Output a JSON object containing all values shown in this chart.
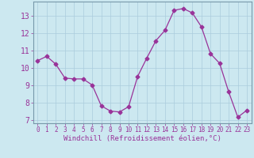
{
  "x": [
    0,
    1,
    2,
    3,
    4,
    5,
    6,
    7,
    8,
    9,
    10,
    11,
    12,
    13,
    14,
    15,
    16,
    17,
    18,
    19,
    20,
    21,
    22,
    23
  ],
  "y": [
    10.4,
    10.65,
    10.2,
    9.4,
    9.35,
    9.35,
    9.0,
    7.8,
    7.5,
    7.45,
    7.75,
    9.5,
    10.55,
    11.55,
    12.15,
    13.3,
    13.4,
    13.15,
    12.35,
    10.8,
    10.25,
    8.6,
    7.15,
    7.55
  ],
  "line_color": "#993399",
  "marker": "D",
  "marker_size": 2.5,
  "xlim": [
    -0.5,
    23.5
  ],
  "ylim": [
    6.8,
    13.8
  ],
  "yticks": [
    7,
    8,
    9,
    10,
    11,
    12,
    13
  ],
  "xticks": [
    0,
    1,
    2,
    3,
    4,
    5,
    6,
    7,
    8,
    9,
    10,
    11,
    12,
    13,
    14,
    15,
    16,
    17,
    18,
    19,
    20,
    21,
    22,
    23
  ],
  "xlabel": "Windchill (Refroidissement éolien,°C)",
  "background_color": "#cce8f0",
  "grid_color": "#aaccdd",
  "tick_color": "#993399",
  "label_color": "#993399",
  "xlabel_fontsize": 6.5,
  "ytick_fontsize": 7.0,
  "xtick_fontsize": 5.5,
  "border_color": "#7799aa"
}
